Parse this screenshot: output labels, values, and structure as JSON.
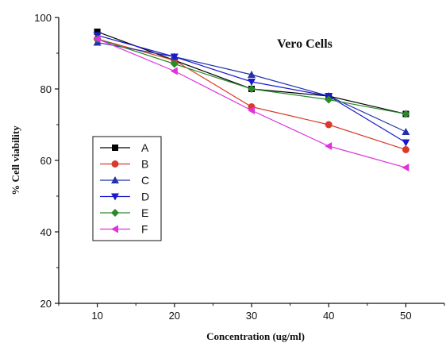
{
  "chart_data": {
    "type": "line",
    "title": "Vero Cells",
    "xlabel": "Concentration (ug/ml)",
    "ylabel": "% Cell viability",
    "x": [
      10,
      20,
      30,
      40,
      50
    ],
    "xlim": [
      5,
      55
    ],
    "ylim": [
      20,
      100
    ],
    "xticks": [
      10,
      20,
      30,
      40,
      50
    ],
    "yticks": [
      20,
      40,
      60,
      80,
      100
    ],
    "grid": false,
    "legend_position": "left-middle",
    "series": [
      {
        "name": "A",
        "values": [
          96,
          88,
          80,
          78,
          73
        ],
        "color": "#000000",
        "marker": "square"
      },
      {
        "name": "B",
        "values": [
          94,
          88,
          75,
          70,
          63
        ],
        "color": "#d93a2b",
        "marker": "circle"
      },
      {
        "name": "C",
        "values": [
          93,
          89,
          84,
          78,
          68
        ],
        "color": "#2233aa",
        "marker": "triangle-up"
      },
      {
        "name": "D",
        "values": [
          95,
          89,
          82,
          78,
          65
        ],
        "color": "#1a1acc",
        "marker": "triangle-down"
      },
      {
        "name": "E",
        "values": [
          94,
          87,
          80,
          77,
          73
        ],
        "color": "#2a8a2a",
        "marker": "diamond"
      },
      {
        "name": "F",
        "values": [
          94,
          85,
          74,
          64,
          58
        ],
        "color": "#dd33dd",
        "marker": "triangle-left"
      }
    ]
  }
}
